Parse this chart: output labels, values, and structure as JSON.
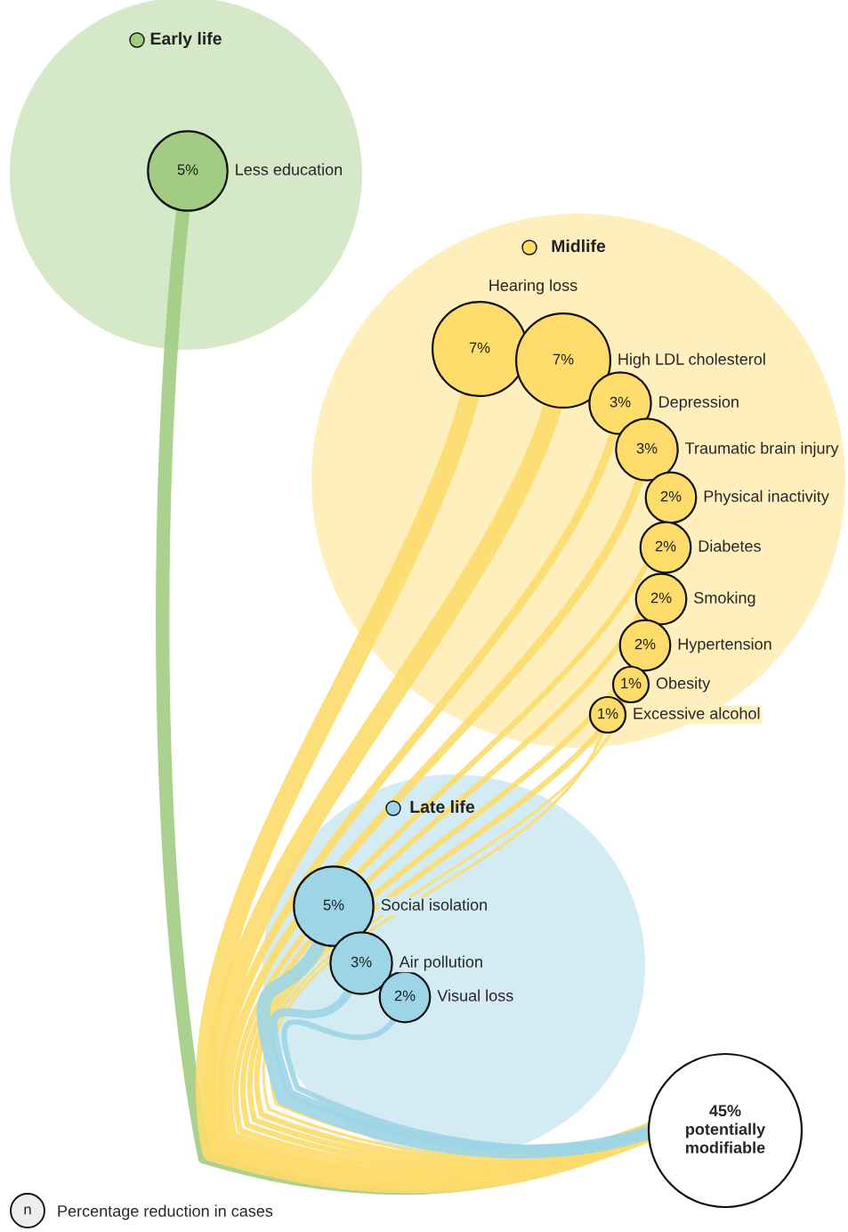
{
  "chart_data": {
    "type": "other",
    "categories": [
      "Less education",
      "Hearing loss",
      "High LDL cholesterol",
      "Depression",
      "Traumatic brain injury",
      "Physical inactivity",
      "Diabetes",
      "Smoking",
      "Hypertension",
      "Obesity",
      "Excessive alcohol",
      "Social isolation",
      "Air pollution",
      "Visual loss"
    ],
    "series": [
      {
        "name": "Early life",
        "color": "#a1cc82",
        "values": [
          5,
          null,
          null,
          null,
          null,
          null,
          null,
          null,
          null,
          null,
          null,
          null,
          null,
          null
        ],
        "value_labels": [
          "5%",
          null,
          null,
          null,
          null,
          null,
          null,
          null,
          null,
          null,
          null,
          null,
          null,
          null
        ]
      },
      {
        "name": "Midlife",
        "color": "#fddc6c",
        "values": [
          null,
          7,
          7,
          3,
          3,
          2,
          2,
          2,
          2,
          1,
          1,
          null,
          null,
          null
        ],
        "value_labels": [
          null,
          "7%",
          "7%",
          "3%",
          "3%",
          "2%",
          "2%",
          "2%",
          "2%",
          "1%",
          "1%",
          null,
          null,
          null
        ]
      },
      {
        "name": "Late life",
        "color": "#9dd5e6",
        "values": [
          null,
          null,
          null,
          null,
          null,
          null,
          null,
          null,
          null,
          null,
          null,
          5,
          3,
          2
        ],
        "value_labels": [
          null,
          null,
          null,
          null,
          null,
          null,
          null,
          null,
          null,
          null,
          null,
          "5%",
          "3%",
          "2%"
        ]
      }
    ],
    "legend": "top left",
    "annotations": [
      "45% potentially modifiable",
      "n",
      "Percentage reduction in cases"
    ]
  }
}
